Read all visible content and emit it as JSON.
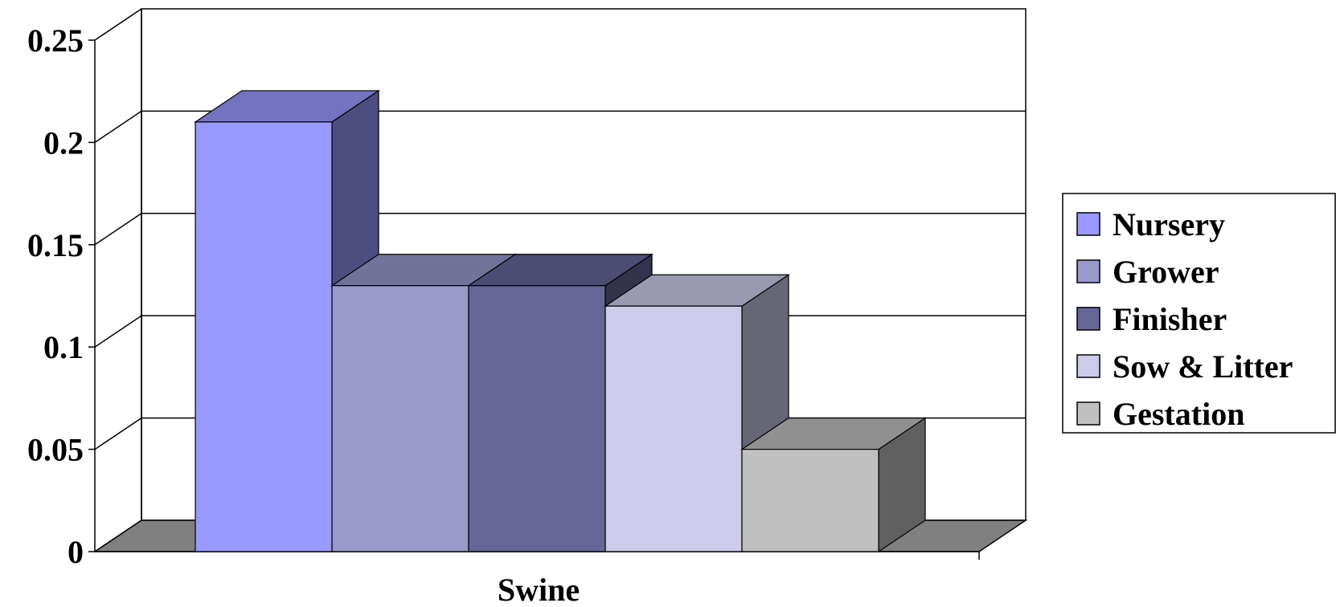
{
  "chart_data": {
    "type": "bar",
    "style": "3d-clustered-column",
    "categories": [
      "Swine"
    ],
    "series": [
      {
        "name": "Nursery",
        "values": [
          0.21
        ],
        "color": "#9999ff",
        "top": "#7373c0",
        "side": "#4d4d80"
      },
      {
        "name": "Grower",
        "values": [
          0.13
        ],
        "color": "#9999cc",
        "top": "#737399",
        "side": "#4d4d66"
      },
      {
        "name": "Finisher",
        "values": [
          0.13
        ],
        "color": "#666699",
        "top": "#4d4d73",
        "side": "#33334d"
      },
      {
        "name": "Sow & Litter",
        "values": [
          0.12
        ],
        "color": "#ccccea",
        "top": "#9999b0",
        "side": "#666675"
      },
      {
        "name": "Gestation",
        "values": [
          0.05
        ],
        "color": "#c0c0c0",
        "top": "#909090",
        "side": "#606060"
      }
    ],
    "yticks": [
      "0",
      "0.05",
      "0.1",
      "0.15",
      "0.2",
      "0.25"
    ],
    "ylim": [
      0,
      0.25
    ],
    "grid": true,
    "legend": "right",
    "floor_color": "#808080"
  }
}
